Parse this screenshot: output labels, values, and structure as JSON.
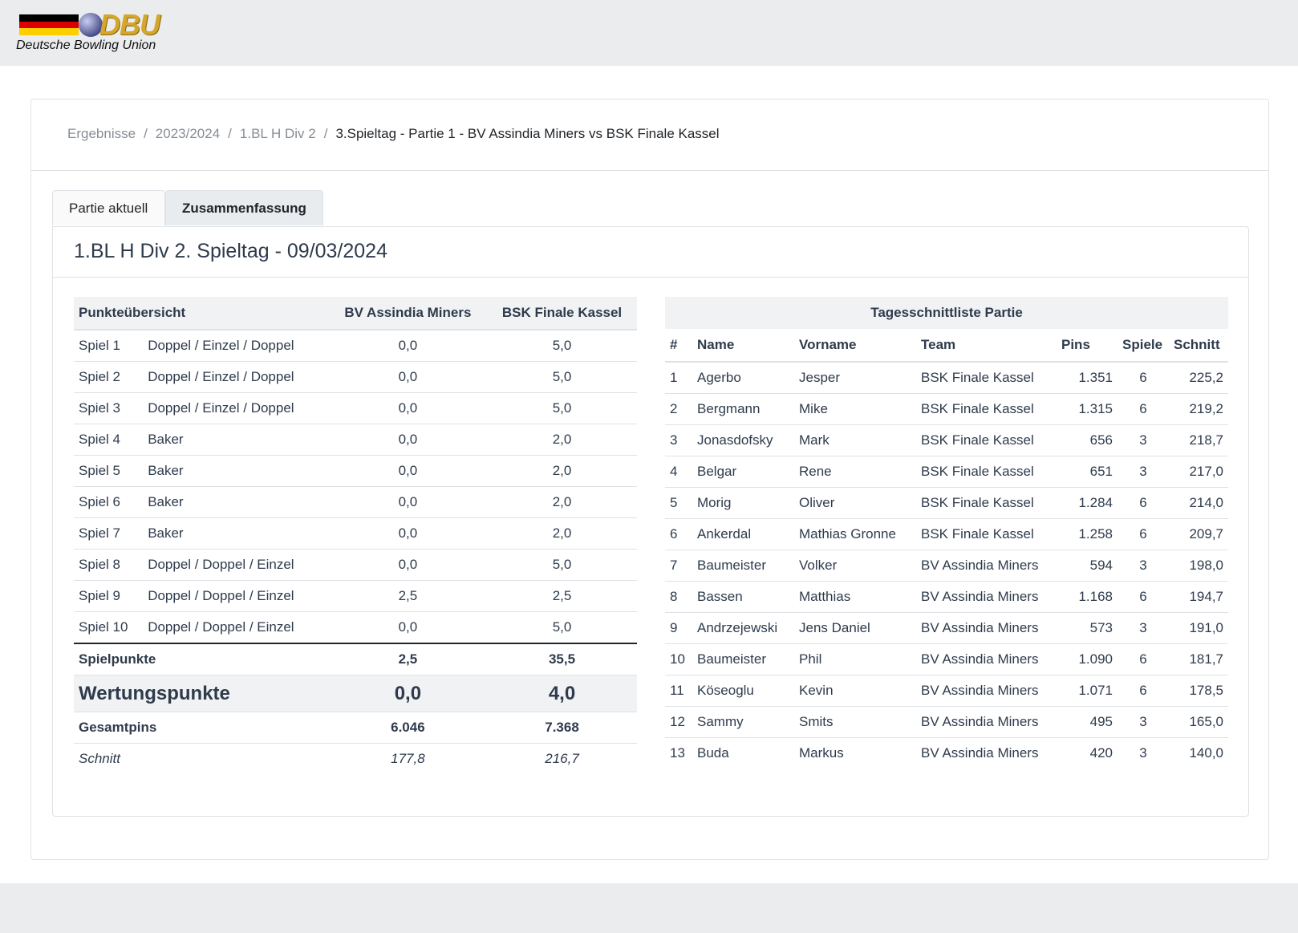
{
  "logo": {
    "brand": "DBU",
    "subtitle": "Deutsche Bowling Union"
  },
  "breadcrumb": [
    "Ergebnisse",
    "2023/2024",
    "1.BL H Div 2",
    "3.Spieltag - Partie 1 - BV Assindia Miners vs BSK Finale Kassel"
  ],
  "tabs": [
    {
      "label": "Partie aktuell",
      "active": false
    },
    {
      "label": "Zusammenfassung",
      "active": true
    }
  ],
  "panel_title": "1.BL H Div 2. Spieltag - 09/03/2024",
  "points": {
    "headers": [
      "Punkteübersicht",
      "BV Assindia Miners",
      "BSK Finale Kassel"
    ],
    "rows": [
      {
        "spiel": "Spiel 1",
        "mode": "Doppel / Einzel / Doppel",
        "a": "0,0",
        "b": "5,0"
      },
      {
        "spiel": "Spiel 2",
        "mode": "Doppel / Einzel / Doppel",
        "a": "0,0",
        "b": "5,0"
      },
      {
        "spiel": "Spiel 3",
        "mode": "Doppel / Einzel / Doppel",
        "a": "0,0",
        "b": "5,0"
      },
      {
        "spiel": "Spiel 4",
        "mode": "Baker",
        "a": "0,0",
        "b": "2,0"
      },
      {
        "spiel": "Spiel 5",
        "mode": "Baker",
        "a": "0,0",
        "b": "2,0"
      },
      {
        "spiel": "Spiel 6",
        "mode": "Baker",
        "a": "0,0",
        "b": "2,0"
      },
      {
        "spiel": "Spiel 7",
        "mode": "Baker",
        "a": "0,0",
        "b": "2,0"
      },
      {
        "spiel": "Spiel 8",
        "mode": "Doppel / Doppel / Einzel",
        "a": "0,0",
        "b": "5,0"
      },
      {
        "spiel": "Spiel 9",
        "mode": "Doppel / Doppel / Einzel",
        "a": "2,5",
        "b": "2,5"
      },
      {
        "spiel": "Spiel 10",
        "mode": "Doppel / Doppel / Einzel",
        "a": "0,0",
        "b": "5,0"
      }
    ],
    "spielpunkte": {
      "label": "Spielpunkte",
      "a": "2,5",
      "b": "35,5"
    },
    "wertungspunkte": {
      "label": "Wertungspunkte",
      "a": "0,0",
      "b": "4,0"
    },
    "gesamtpins": {
      "label": "Gesamtpins",
      "a": "6.046",
      "b": "7.368"
    },
    "schnitt": {
      "label": "Schnitt",
      "a": "177,8",
      "b": "216,7"
    }
  },
  "averages": {
    "caption": "Tagesschnittliste Partie",
    "headers": [
      "#",
      "Name",
      "Vorname",
      "Team",
      "Pins",
      "Spiele",
      "Schnitt"
    ],
    "rows": [
      {
        "rank": "1",
        "name": "Agerbo",
        "vorname": "Jesper",
        "team": "BSK Finale Kassel",
        "pins": "1.351",
        "spiele": "6",
        "schnitt": "225,2"
      },
      {
        "rank": "2",
        "name": "Bergmann",
        "vorname": "Mike",
        "team": "BSK Finale Kassel",
        "pins": "1.315",
        "spiele": "6",
        "schnitt": "219,2"
      },
      {
        "rank": "3",
        "name": "Jonasdofsky",
        "vorname": "Mark",
        "team": "BSK Finale Kassel",
        "pins": "656",
        "spiele": "3",
        "schnitt": "218,7"
      },
      {
        "rank": "4",
        "name": "Belgar",
        "vorname": "Rene",
        "team": "BSK Finale Kassel",
        "pins": "651",
        "spiele": "3",
        "schnitt": "217,0"
      },
      {
        "rank": "5",
        "name": "Morig",
        "vorname": "Oliver",
        "team": "BSK Finale Kassel",
        "pins": "1.284",
        "spiele": "6",
        "schnitt": "214,0"
      },
      {
        "rank": "6",
        "name": "Ankerdal",
        "vorname": "Mathias Gronne",
        "team": "BSK Finale Kassel",
        "pins": "1.258",
        "spiele": "6",
        "schnitt": "209,7"
      },
      {
        "rank": "7",
        "name": "Baumeister",
        "vorname": "Volker",
        "team": "BV Assindia Miners",
        "pins": "594",
        "spiele": "3",
        "schnitt": "198,0"
      },
      {
        "rank": "8",
        "name": "Bassen",
        "vorname": "Matthias",
        "team": "BV Assindia Miners",
        "pins": "1.168",
        "spiele": "6",
        "schnitt": "194,7"
      },
      {
        "rank": "9",
        "name": "Andrzejewski",
        "vorname": "Jens Daniel",
        "team": "BV Assindia Miners",
        "pins": "573",
        "spiele": "3",
        "schnitt": "191,0"
      },
      {
        "rank": "10",
        "name": "Baumeister",
        "vorname": "Phil",
        "team": "BV Assindia Miners",
        "pins": "1.090",
        "spiele": "6",
        "schnitt": "181,7"
      },
      {
        "rank": "11",
        "name": "Köseoglu",
        "vorname": "Kevin",
        "team": "BV Assindia Miners",
        "pins": "1.071",
        "spiele": "6",
        "schnitt": "178,5"
      },
      {
        "rank": "12",
        "name": "Sammy",
        "vorname": "Smits",
        "team": "BV Assindia Miners",
        "pins": "495",
        "spiele": "3",
        "schnitt": "165,0"
      },
      {
        "rank": "13",
        "name": "Buda",
        "vorname": "Markus",
        "team": "BV Assindia Miners",
        "pins": "420",
        "spiele": "3",
        "schnitt": "140,0"
      }
    ]
  },
  "colors": {
    "flag_black": "#000000",
    "flag_red": "#dd0000",
    "flag_gold": "#ffce00",
    "logo_gold": "#d4a72c",
    "heading": "#2f3b4c",
    "muted": "#868e96"
  }
}
